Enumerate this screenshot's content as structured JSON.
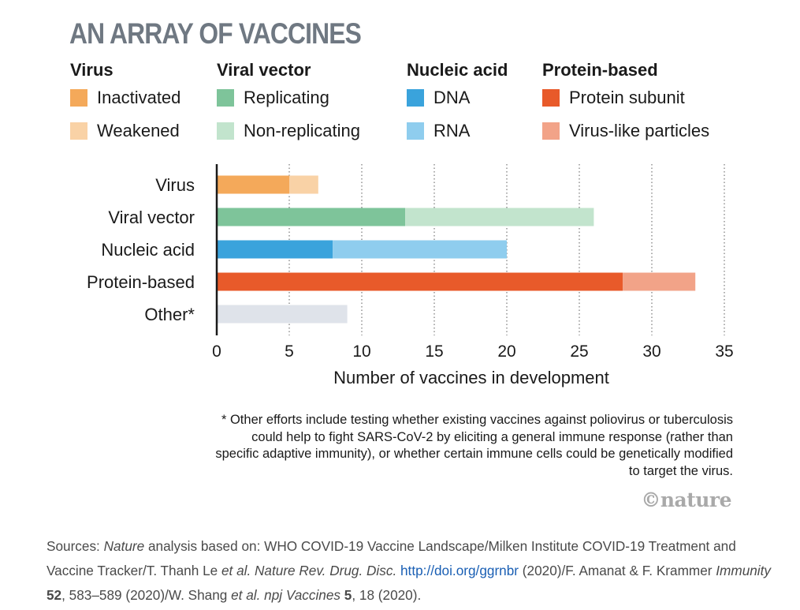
{
  "title": "AN ARRAY OF VACCINES",
  "legend": [
    {
      "heading": "Virus",
      "items": [
        {
          "label": "Inactivated",
          "color": "#f4a95a"
        },
        {
          "label": "Weakened",
          "color": "#f9d2a6"
        }
      ]
    },
    {
      "heading": "Viral vector",
      "items": [
        {
          "label": "Replicating",
          "color": "#7ec49a"
        },
        {
          "label": "Non-replicating",
          "color": "#c2e4cd"
        }
      ]
    },
    {
      "heading": "Nucleic acid",
      "items": [
        {
          "label": "DNA",
          "color": "#3aa3dc"
        },
        {
          "label": "RNA",
          "color": "#8fcdee"
        }
      ]
    },
    {
      "heading": "Protein-based",
      "items": [
        {
          "label": "Protein subunit",
          "color": "#e85a2a"
        },
        {
          "label": "Virus-like particles",
          "color": "#f2a388"
        }
      ]
    }
  ],
  "chart_data": {
    "type": "bar",
    "orientation": "horizontal",
    "stacked": true,
    "categories": [
      "Virus",
      "Viral vector",
      "Nucleic acid",
      "Protein-based",
      "Other*"
    ],
    "series": [
      {
        "name": "Inactivated",
        "category": "Virus",
        "value": 5,
        "color": "#f4a95a"
      },
      {
        "name": "Weakened",
        "category": "Virus",
        "value": 2,
        "color": "#f9d2a6"
      },
      {
        "name": "Replicating",
        "category": "Viral vector",
        "value": 13,
        "color": "#7ec49a"
      },
      {
        "name": "Non-replicating",
        "category": "Viral vector",
        "value": 13,
        "color": "#c2e4cd"
      },
      {
        "name": "DNA",
        "category": "Nucleic acid",
        "value": 8,
        "color": "#3aa3dc"
      },
      {
        "name": "RNA",
        "category": "Nucleic acid",
        "value": 12,
        "color": "#8fcdee"
      },
      {
        "name": "Protein subunit",
        "category": "Protein-based",
        "value": 28,
        "color": "#e85a2a"
      },
      {
        "name": "Virus-like particles",
        "category": "Protein-based",
        "value": 5,
        "color": "#f2a388"
      },
      {
        "name": "Other",
        "category": "Other*",
        "value": 9,
        "color": "#dfe3ea"
      }
    ],
    "xlim": [
      0,
      35
    ],
    "xticks": [
      0,
      5,
      10,
      15,
      20,
      25,
      30,
      35
    ],
    "xlabel": "Number of vaccines in development",
    "grid": "vertical dotted"
  },
  "footnote": "* Other efforts include testing whether existing vaccines against poliovirus or tuberculosis could help to fight SARS-CoV-2 by eliciting a general immune response (rather than specific adaptive immunity), or whether certain immune cells could be genetically modified to target the virus.",
  "brand": "©nature",
  "sources": {
    "prefix": "Sources: ",
    "nature": "Nature",
    "part1": " analysis based on: WHO COVID-19 Vaccine Landscape/Milken Institute COVID-19 Treatment and Vaccine Tracker/T. Thanh Le ",
    "etal1": "et al.",
    "space1": " ",
    "journal1": "Nature Rev. Drug. Disc.",
    "space2": " ",
    "link": "http://doi.org/ggrnbr",
    "part2": " (2020)/F. Amanat & F. Krammer ",
    "journal2": "Immunity",
    "space3": " ",
    "vol2": "52",
    "part3": ", 583–589 (2020)/W. Shang ",
    "etal2": "et al.",
    "space4": " ",
    "journal3": "npj Vaccines",
    "space5": " ",
    "vol3": "5",
    "part4": ", 18 (2020)."
  }
}
